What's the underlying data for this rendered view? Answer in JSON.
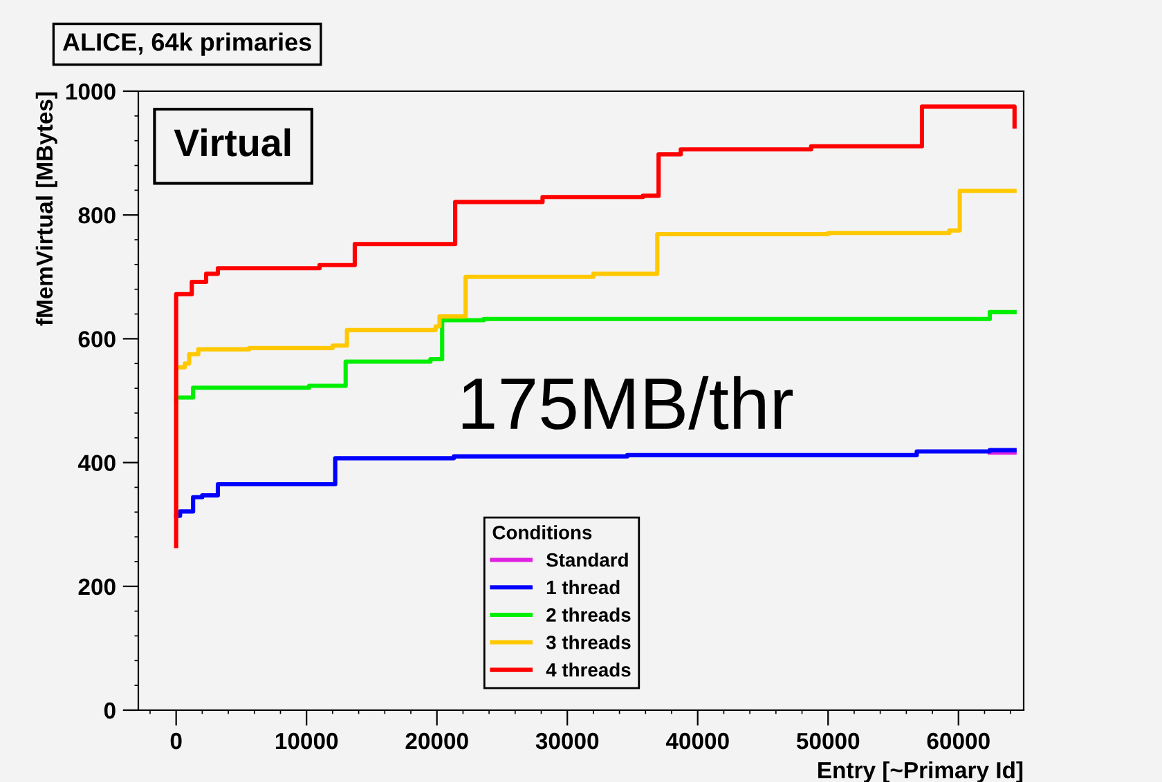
{
  "chart_data": {
    "type": "step",
    "title": "ALICE, 64k primaries",
    "xlabel": "Entry [~Primary Id]",
    "ylabel": "fMemVirtual [MBytes]",
    "legend_title": "Conditions",
    "legend": "bottom",
    "grid": false,
    "xlim": [
      -2900,
      65000
    ],
    "ylim": [
      0,
      1000
    ],
    "xticks": [
      0,
      10000,
      20000,
      30000,
      40000,
      50000,
      60000
    ],
    "yticks": [
      0,
      200,
      400,
      600,
      800,
      1000
    ],
    "annotations": [
      "Virtual",
      "175MB/thr"
    ],
    "series": [
      {
        "name": "Standard",
        "color": "#e020e0",
        "x": [
          62400,
          64300
        ],
        "values": [
          416,
          416
        ]
      },
      {
        "name": "1 thread",
        "color": "#0000ff",
        "x": [
          0,
          0,
          300,
          1300,
          2000,
          3200,
          12200,
          21300,
          34600,
          56800,
          62400,
          64300
        ],
        "values": [
          314,
          314,
          321,
          344,
          347,
          365,
          407,
          410,
          412,
          418,
          420,
          420
        ]
      },
      {
        "name": "2 threads",
        "color": "#00ee00",
        "x": [
          0,
          0,
          1300,
          10200,
          13000,
          19500,
          20400,
          23600,
          62400,
          64300
        ],
        "values": [
          500,
          505,
          521,
          524,
          563,
          567,
          630,
          632,
          643,
          643
        ]
      },
      {
        "name": "3 threads",
        "color": "#ffc800",
        "x": [
          0,
          0,
          670,
          1000,
          1700,
          5600,
          12000,
          13100,
          19900,
          20200,
          22200,
          32000,
          36900,
          50000,
          59300,
          60100,
          64300
        ],
        "values": [
          315,
          554,
          560,
          575,
          583,
          585,
          589,
          614,
          620,
          636,
          700,
          705,
          769,
          771,
          775,
          839,
          839
        ]
      },
      {
        "name": "4 threads",
        "color": "#ff0000",
        "x": [
          0,
          0,
          0,
          1200,
          2300,
          3200,
          11000,
          13700,
          21400,
          28100,
          35800,
          37000,
          38700,
          48700,
          57200,
          64300,
          64300
        ],
        "values": [
          265,
          610,
          672,
          692,
          705,
          714,
          719,
          753,
          821,
          829,
          831,
          898,
          906,
          911,
          975,
          975,
          943
        ]
      }
    ]
  }
}
